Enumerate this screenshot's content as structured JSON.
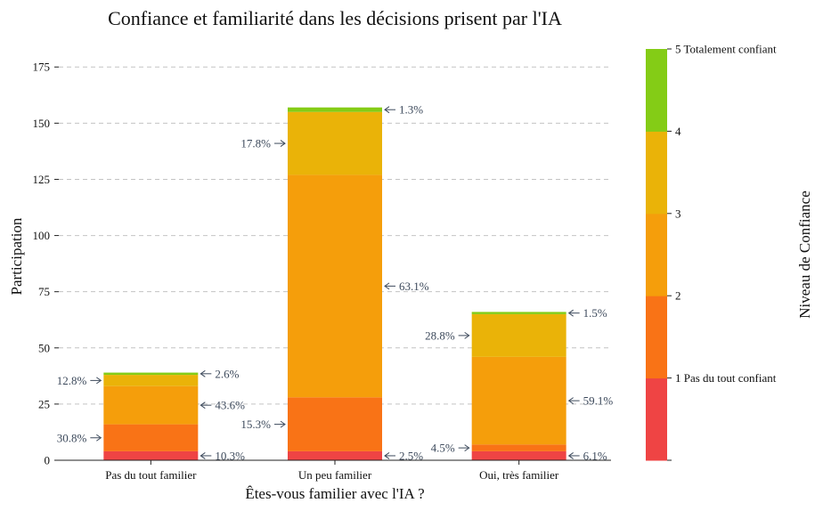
{
  "chart_data": {
    "type": "bar",
    "stacked": true,
    "title": "Confiance et familiarité dans les décisions prisent par l'IA",
    "xlabel": "Êtes-vous familier avec l'IA ?",
    "ylabel": "Participation",
    "ylim": [
      0,
      185
    ],
    "yticks": [
      0,
      25,
      50,
      75,
      100,
      125,
      150,
      175
    ],
    "grid": "horizontal dashed",
    "categories": [
      "Pas du tout familier",
      "Un peu familier",
      "Oui, très familier"
    ],
    "series": [
      {
        "level": 1,
        "color": "#ef4444",
        "values": [
          4,
          4,
          4
        ]
      },
      {
        "level": 2,
        "color": "#f97316",
        "values": [
          12,
          24,
          3
        ]
      },
      {
        "level": 3,
        "color": "#f59e0b",
        "values": [
          17,
          99,
          39
        ]
      },
      {
        "level": 4,
        "color": "#eab308",
        "values": [
          5,
          28,
          19
        ]
      },
      {
        "level": 5,
        "color": "#84cc16",
        "values": [
          1,
          2,
          1
        ]
      }
    ],
    "annotations": [
      [
        {
          "level": 1,
          "text": "10.3%",
          "side": "right"
        },
        {
          "level": 2,
          "text": "30.8%",
          "side": "left"
        },
        {
          "level": 3,
          "text": "43.6%",
          "side": "right"
        },
        {
          "level": 4,
          "text": "12.8%",
          "side": "left"
        },
        {
          "level": 5,
          "text": "2.6%",
          "side": "right"
        }
      ],
      [
        {
          "level": 1,
          "text": "2.5%",
          "side": "right"
        },
        {
          "level": 2,
          "text": "15.3%",
          "side": "left"
        },
        {
          "level": 3,
          "text": "63.1%",
          "side": "right"
        },
        {
          "level": 4,
          "text": "17.8%",
          "side": "left"
        },
        {
          "level": 5,
          "text": "1.3%",
          "side": "right"
        }
      ],
      [
        {
          "level": 1,
          "text": "6.1%",
          "side": "right"
        },
        {
          "level": 2,
          "text": "4.5%",
          "side": "left"
        },
        {
          "level": 3,
          "text": "59.1%",
          "side": "right"
        },
        {
          "level": 4,
          "text": "28.8%",
          "side": "left"
        },
        {
          "level": 5,
          "text": "1.5%",
          "side": "right"
        }
      ]
    ],
    "colorbar": {
      "label": "Niveau de Confiance",
      "ticks": [
        "1 Pas du tout confiant",
        "2",
        "3",
        "4",
        "5 Totalement confiant"
      ]
    }
  }
}
